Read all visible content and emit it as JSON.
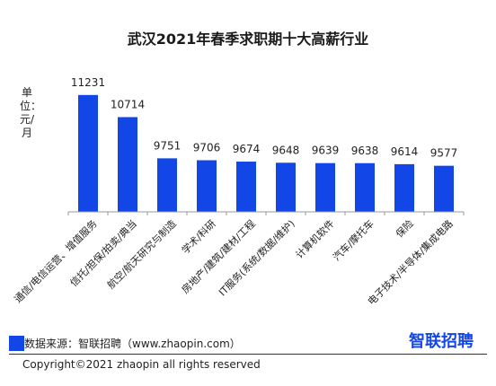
{
  "chart_data": {
    "type": "bar",
    "title": "武汉2021年春季求职期十大高薪行业",
    "ylabel": "单位：元/月",
    "categories": [
      "通信/电信运营、增值服务",
      "信托/担保/拍卖/典当",
      "航空/航天研究与制造",
      "学术/科研",
      "房地产/建筑/建材/工程",
      "IT服务(系统/数据/维护)",
      "计算机软件",
      "汽车/摩托车",
      "保险",
      "电子技术/半导体/集成电路"
    ],
    "values": [
      11231,
      10714,
      9751,
      9706,
      9674,
      9648,
      9639,
      9638,
      9614,
      9577
    ],
    "ylim": [
      8500,
      11500
    ],
    "grid": false,
    "bar_color": "#1246e6"
  },
  "footer": {
    "source": "数据来源：智联招聘（www.zhaopin.com）",
    "copyright": "Copyright©2021 zhaopin all rights reserved",
    "logo_text": "智联招聘"
  }
}
